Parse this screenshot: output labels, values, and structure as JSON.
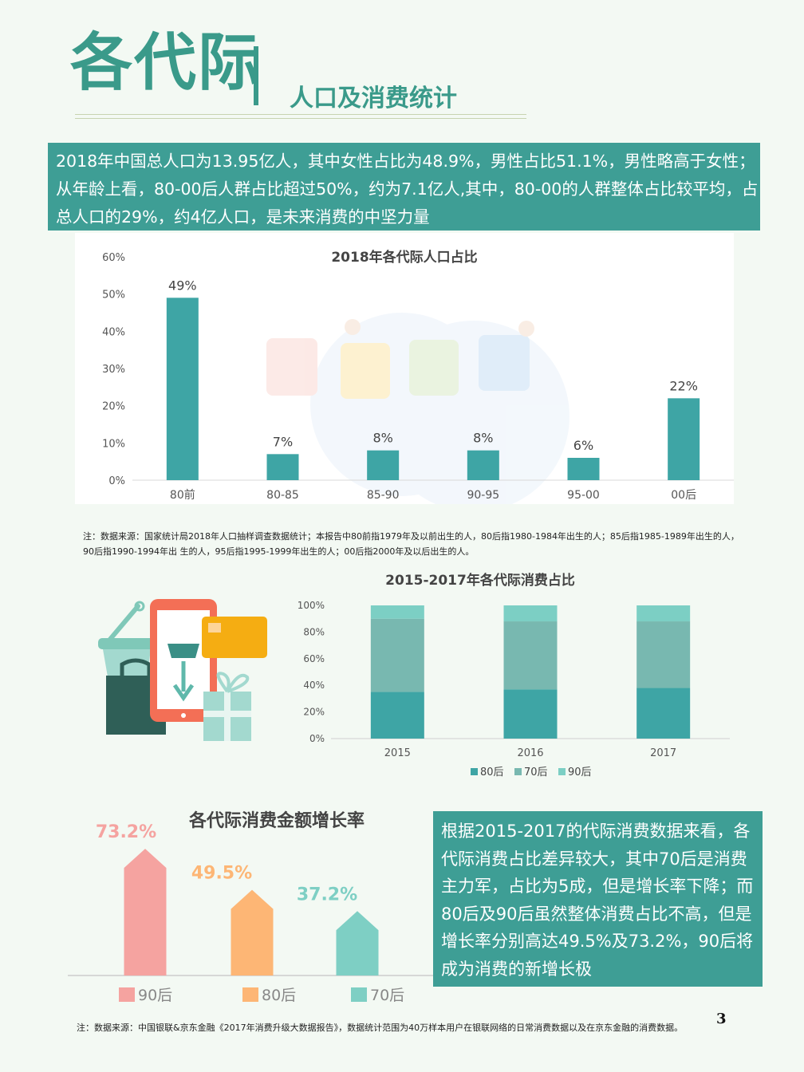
{
  "header": {
    "title": "各代际",
    "subtitle": "人口及消费统计"
  },
  "intro_text": "2018年中国总人口为13.95亿人，其中女性占比为48.9%，男性占比51.1%，男性略高于女性；从年龄上看，80-00后人群占比超过50%，约为7.1亿人,其中，80-00的人群整体占比较平均，占总人口的29%，约4亿人口，是未来消费的中坚力量",
  "notes": {
    "population_note": "注：数据来源：国家统计局2018年人口抽样调查数据统计；本报告中80前指1979年及以前出生的人，80后指1980-1984年出生的人；85后指1985-1989年出生的人，90后指1990-1994年出 生的人，95后指1995-1999年出生的人；00后指2000年及以后出生的人。",
    "consumption_note": "注：数据来源：中国银联&京东金融《2017年消费升级大数据报告》，数据统计范围为40万样本用户在银联网络的日常消费数据以及在京东金融的消费数据。"
  },
  "explanation_text": "根据2015-2017的代际消费数据来看，各代际消费占比差异较大，其中70后是消费主力军，占比为5成，但是增长率下降；而80后及90后虽然整体消费占比不高，但是增长率分别高达49.5%及73.2%，90后将成为消费的新增长极",
  "page_number": "3",
  "colors": {
    "teal": "#3e9e95",
    "bar_teal": "#3ea5a5",
    "mid_teal": "#78b8b0",
    "light_teal": "#7ccfc4",
    "pink": "#f5a3a0",
    "orange": "#fdb675",
    "green": "#7ecfc4"
  },
  "chart_data": [
    {
      "type": "bar",
      "title": "2018年各代际人口占比",
      "categories": [
        "80前",
        "80-85",
        "85-90",
        "90-95",
        "95-00",
        "00后"
      ],
      "values": [
        49,
        7,
        8,
        8,
        6,
        22
      ],
      "data_labels": [
        "49%",
        "7%",
        "8%",
        "8%",
        "6%",
        "22%"
      ],
      "yticks": [
        "0%",
        "10%",
        "20%",
        "30%",
        "40%",
        "50%",
        "60%"
      ],
      "ylim": [
        0,
        60
      ],
      "grid": false
    },
    {
      "type": "bar",
      "stacked": true,
      "title": "2015-2017年各代际消费占比",
      "categories": [
        "2015",
        "2016",
        "2017"
      ],
      "series": [
        {
          "name": "80后",
          "values": [
            35,
            37,
            38
          ]
        },
        {
          "name": "70后",
          "values": [
            55,
            51,
            50
          ]
        },
        {
          "name": "90后",
          "values": [
            10,
            12,
            12
          ]
        }
      ],
      "yticks": [
        "0%",
        "20%",
        "40%",
        "60%",
        "80%",
        "100%"
      ],
      "ylim": [
        0,
        100
      ],
      "legend": "bottom"
    },
    {
      "type": "bar",
      "title": "各代际消费金额增长率",
      "categories": [
        "90后",
        "80后",
        "70后"
      ],
      "values": [
        73.2,
        49.5,
        37.2
      ],
      "data_labels": [
        "73.2%",
        "49.5%",
        "37.2%"
      ],
      "legend": "bottom"
    }
  ]
}
